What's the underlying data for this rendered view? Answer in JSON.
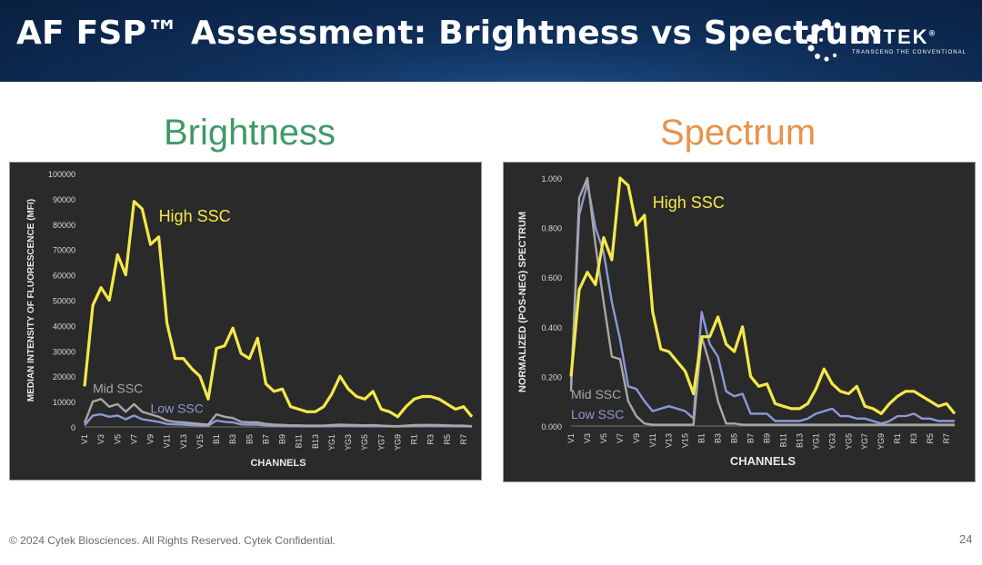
{
  "slide": {
    "title": "AF FSP™ Assessment: Brightness vs Spectrum",
    "footer": "© 2024 Cytek Biosciences. All Rights Reserved. Cytek Confidential.",
    "page_number": "24",
    "brand": {
      "name": "CYTEK",
      "registered": "®",
      "tagline": "TRANSCEND THE CONVENTIONAL"
    },
    "left_heading": "Brightness",
    "right_heading": "Spectrum",
    "colors": {
      "banner": "#0f2f5a",
      "left_heading": "#3f9a66",
      "right_heading": "#e8924a",
      "high": "#f5e84a",
      "mid": "#a8a8a8",
      "low": "#8c98d8",
      "plot_bg": "#2a2a2a"
    }
  },
  "chart_data": [
    {
      "type": "line",
      "title": "Brightness",
      "xlabel": "CHANNELS",
      "ylabel": "MEDIAN INTENSITY OF FLUORESCENCE (MFI)",
      "ylim": [
        0,
        100000
      ],
      "yticks": [
        "0",
        "10000",
        "20000",
        "30000",
        "40000",
        "50000",
        "60000",
        "70000",
        "80000",
        "90000",
        "100000"
      ],
      "categories": [
        "V1",
        "V2",
        "V3",
        "V4",
        "V5",
        "V6",
        "V7",
        "V8",
        "V9",
        "V10",
        "V11",
        "V12",
        "V13",
        "V14",
        "V15",
        "V16",
        "B1",
        "B2",
        "B3",
        "B4",
        "B5",
        "B6",
        "B7",
        "B8",
        "B9",
        "B10",
        "B11",
        "B12",
        "B13",
        "B14",
        "YG1",
        "YG2",
        "YG3",
        "YG4",
        "YG5",
        "YG6",
        "YG7",
        "YG8",
        "YG9",
        "YG10",
        "R1",
        "R2",
        "R3",
        "R4",
        "R5",
        "R6",
        "R7",
        "R8"
      ],
      "tick_labels": [
        "V1",
        "V3",
        "V5",
        "V7",
        "V9",
        "V11",
        "V13",
        "V15",
        "B1",
        "B3",
        "B5",
        "B7",
        "B9",
        "B11",
        "B13",
        "YG1",
        "YG3",
        "YG5",
        "YG7",
        "YG9",
        "R1",
        "R3",
        "R5",
        "R7"
      ],
      "series": [
        {
          "name": "High SSC",
          "color": "#f5e84a",
          "label_pos": [
            9,
            81000
          ],
          "values": [
            16000,
            48000,
            55000,
            50000,
            68000,
            60000,
            89000,
            86000,
            72000,
            75000,
            41000,
            27000,
            27000,
            23000,
            20000,
            11000,
            31000,
            32000,
            39000,
            29000,
            27000,
            35000,
            17000,
            14000,
            15000,
            8000,
            7000,
            6000,
            6000,
            8000,
            13000,
            20000,
            15000,
            12000,
            11000,
            14000,
            7000,
            6000,
            4000,
            8000,
            11000,
            12000,
            12000,
            11000,
            9000,
            7000,
            8000,
            4000
          ]
        },
        {
          "name": "Mid SSC",
          "color": "#a8a8a8",
          "label_pos": [
            1,
            13500
          ],
          "values": [
            1500,
            10000,
            11000,
            8000,
            9000,
            6000,
            9000,
            6000,
            5000,
            4000,
            2500,
            2000,
            1800,
            1500,
            1200,
            900,
            5000,
            4000,
            3500,
            2000,
            1800,
            1800,
            1200,
            900,
            800,
            600,
            600,
            500,
            500,
            500,
            700,
            900,
            800,
            700,
            600,
            700,
            500,
            400,
            300,
            500,
            700,
            800,
            800,
            700,
            600,
            500,
            500,
            300
          ]
        },
        {
          "name": "Low SSC",
          "color": "#8c98d8",
          "label_pos": [
            8,
            5500
          ],
          "values": [
            600,
            4500,
            5000,
            4000,
            4500,
            3000,
            4500,
            3000,
            2500,
            2000,
            1200,
            1000,
            900,
            700,
            600,
            500,
            2500,
            2000,
            1800,
            1000,
            900,
            900,
            600,
            500,
            400,
            300,
            300,
            250,
            250,
            250,
            350,
            450,
            400,
            350,
            300,
            350,
            250,
            200,
            150,
            250,
            350,
            400,
            400,
            350,
            300,
            250,
            250,
            150
          ]
        }
      ]
    },
    {
      "type": "line",
      "title": "Spectrum",
      "xlabel": "CHANNELS",
      "ylabel": "NORMALIZED (POS-NEG) SPECTRUM",
      "ylim": [
        0,
        1
      ],
      "yticks": [
        "0.000",
        "0.200",
        "0.400",
        "0.600",
        "0.800",
        "1.000"
      ],
      "categories": [
        "V1",
        "V2",
        "V3",
        "V4",
        "V5",
        "V6",
        "V7",
        "V8",
        "V9",
        "V10",
        "V11",
        "V12",
        "V13",
        "V14",
        "V15",
        "V16",
        "B1",
        "B2",
        "B3",
        "B4",
        "B5",
        "B6",
        "B7",
        "B8",
        "B9",
        "B10",
        "B11",
        "B12",
        "B13",
        "B14",
        "YG1",
        "YG2",
        "YG3",
        "YG4",
        "YG5",
        "YG6",
        "YG7",
        "YG8",
        "YG9",
        "YG10",
        "R1",
        "R2",
        "R3",
        "R4",
        "R5",
        "R6",
        "R7",
        "R8"
      ],
      "tick_labels": [
        "V1",
        "V3",
        "V5",
        "V7",
        "V9",
        "V11",
        "V13",
        "V15",
        "B1",
        "B3",
        "B5",
        "B7",
        "B9",
        "B11",
        "B13",
        "YG1",
        "YG3",
        "YG5",
        "YG7",
        "YG9",
        "R1",
        "R3",
        "R5",
        "R7"
      ],
      "series": [
        {
          "name": "High SSC",
          "color": "#f5e84a",
          "label_pos": [
            10,
            0.88
          ],
          "values": [
            0.2,
            0.55,
            0.62,
            0.57,
            0.76,
            0.67,
            1.0,
            0.97,
            0.81,
            0.85,
            0.46,
            0.31,
            0.3,
            0.26,
            0.22,
            0.13,
            0.36,
            0.36,
            0.44,
            0.33,
            0.3,
            0.4,
            0.2,
            0.16,
            0.17,
            0.09,
            0.08,
            0.07,
            0.07,
            0.09,
            0.15,
            0.23,
            0.17,
            0.14,
            0.13,
            0.16,
            0.08,
            0.07,
            0.05,
            0.09,
            0.12,
            0.14,
            0.14,
            0.12,
            0.1,
            0.08,
            0.09,
            0.05
          ]
        },
        {
          "name": "Mid SSC",
          "color": "#a8a8a8",
          "label_pos": [
            0,
            0.11
          ],
          "values": [
            0.14,
            0.92,
            1.0,
            0.73,
            0.5,
            0.28,
            0.27,
            0.1,
            0.04,
            0.01,
            0.005,
            0.005,
            0.005,
            0.005,
            0.005,
            0.005,
            0.36,
            0.25,
            0.1,
            0.01,
            0.01,
            0.005,
            0.005,
            0.005,
            0.005,
            0.005,
            0.005,
            0.005,
            0.005,
            0.005,
            0.005,
            0.005,
            0.005,
            0.005,
            0.005,
            0.005,
            0.005,
            0.005,
            0.005,
            0.005,
            0.005,
            0.005,
            0.005,
            0.005,
            0.005,
            0.005,
            0.005,
            0.005
          ]
        },
        {
          "name": "Low SSC",
          "color": "#8c98d8",
          "label_pos": [
            0,
            0.03
          ],
          "values": [
            0.17,
            0.85,
            0.98,
            0.8,
            0.7,
            0.5,
            0.35,
            0.16,
            0.15,
            0.1,
            0.06,
            0.07,
            0.08,
            0.07,
            0.06,
            0.03,
            0.46,
            0.33,
            0.28,
            0.14,
            0.12,
            0.13,
            0.05,
            0.05,
            0.05,
            0.02,
            0.02,
            0.02,
            0.02,
            0.03,
            0.05,
            0.06,
            0.07,
            0.04,
            0.04,
            0.03,
            0.03,
            0.02,
            0.01,
            0.02,
            0.04,
            0.04,
            0.05,
            0.03,
            0.03,
            0.02,
            0.02,
            0.02
          ]
        }
      ]
    }
  ]
}
